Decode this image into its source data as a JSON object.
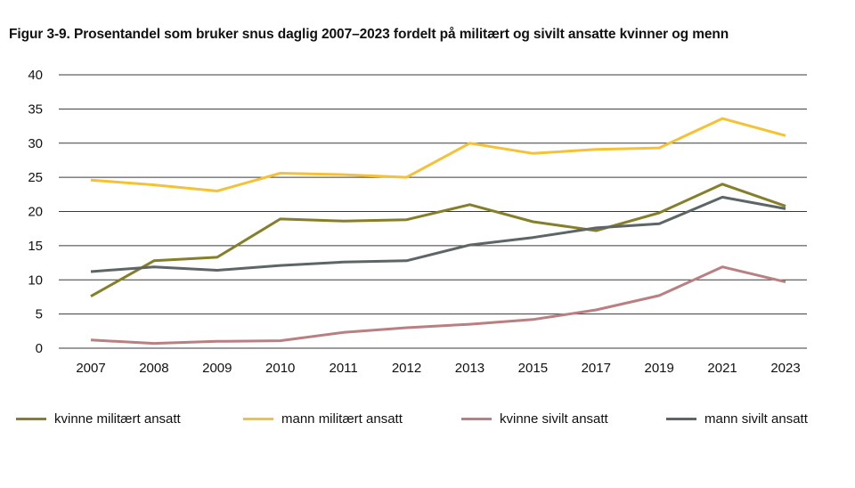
{
  "chart_data": {
    "type": "line",
    "title": "Figur 3-9.  Prosentandel som bruker snus daglig 2007–2023 fordelt på militært og sivilt ansatte kvinner og menn",
    "xlabel": "",
    "ylabel": "",
    "ylim": [
      0,
      40
    ],
    "yticks": [
      0,
      5,
      10,
      15,
      20,
      25,
      30,
      35,
      40
    ],
    "grid": true,
    "legend_position": "bottom",
    "categories": [
      "2007",
      "2008",
      "2009",
      "2010",
      "2011",
      "2012",
      "2013",
      "2015",
      "2017",
      "2019",
      "2021",
      "2023"
    ],
    "series": [
      {
        "name": "kvinne militært ansatt",
        "color": "#857f2a",
        "values": [
          7.6,
          12.8,
          13.3,
          18.9,
          18.6,
          18.8,
          21.0,
          18.5,
          17.2,
          19.8,
          24.0,
          20.8
        ]
      },
      {
        "name": "mann militært ansatt",
        "color": "#f5c136",
        "values": [
          24.6,
          23.9,
          23.0,
          25.6,
          25.4,
          25.0,
          30.0,
          28.5,
          29.1,
          29.3,
          33.6,
          31.1
        ]
      },
      {
        "name": "kvinne sivilt ansatt",
        "color": "#b97f81",
        "values": [
          1.2,
          0.7,
          1.0,
          1.1,
          2.3,
          3.0,
          3.5,
          4.2,
          5.6,
          7.7,
          11.9,
          9.7
        ]
      },
      {
        "name": "mann sivilt ansatt",
        "color": "#5e6566",
        "values": [
          11.2,
          11.9,
          11.4,
          12.1,
          12.6,
          12.8,
          15.1,
          16.2,
          17.6,
          18.2,
          22.1,
          20.4
        ]
      }
    ]
  }
}
